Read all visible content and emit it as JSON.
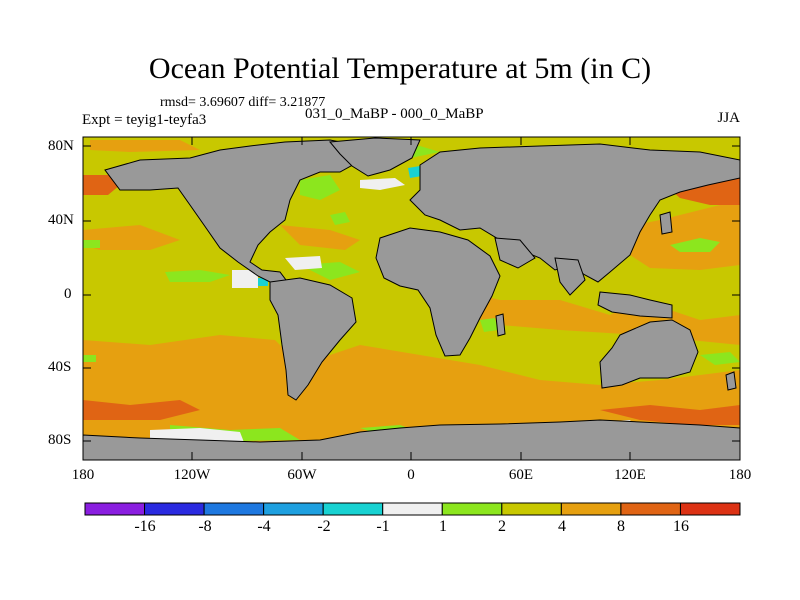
{
  "map": {
    "title": "Ocean Potential Temperature at 5m (in C)",
    "stats": "rmsd= 3.69607 diff= 3.21877",
    "experiment": "Expt = teyig1-teyfa3",
    "comparison": "031_0_MaBP - 000_0_MaBP",
    "season": "JJA",
    "lat_labels": [
      "80N",
      "40N",
      "0",
      "40S",
      "80S"
    ],
    "lon_labels": [
      "180",
      "120W",
      "60W",
      "0",
      "60E",
      "120E",
      "180"
    ]
  },
  "colorbar": {
    "labels": [
      "-16",
      "-8",
      "-4",
      "-2",
      "-1",
      "1",
      "2",
      "4",
      "8",
      "16"
    ],
    "colors": [
      "#8a1ee0",
      "#2a2ae0",
      "#1e78e0",
      "#1ea0e0",
      "#18d2d2",
      "#f0f0f0",
      "#8ce61e",
      "#c8c800",
      "#e6a010",
      "#e06414",
      "#dc3214"
    ]
  },
  "palette": {
    "land": "#999999",
    "ocean_base": "#c8c800",
    "warm": "#e6a010",
    "hot": "#e06414",
    "cool": "#8ce61e",
    "neutral": "#f0f0f0",
    "cyan": "#18d2d2"
  }
}
